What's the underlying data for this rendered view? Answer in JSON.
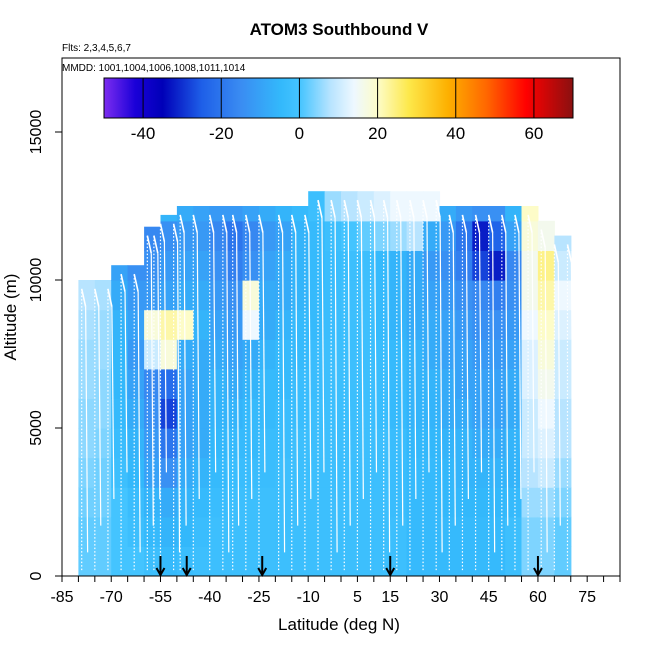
{
  "chart_data": {
    "type": "heatmap",
    "title": "ATOM3 Southbound V",
    "subtitle_flights": "Flts: 2,3,4,5,6,7",
    "subtitle_dates": "MMDD: 1001,1004,1006,1008,1011,1014",
    "xlabel": "Latitude (deg N)",
    "ylabel": "Altitude (m)",
    "xlim": [
      -85,
      85
    ],
    "ylim": [
      0,
      17500
    ],
    "x_tick_labels": [
      "-85",
      "-70",
      "-55",
      "-40",
      "-25",
      "-10",
      "5",
      "15",
      "30",
      "45",
      "60",
      "75"
    ],
    "x_tick_values": [
      -85,
      -70,
      -55,
      -40,
      -25,
      -10,
      5,
      15,
      30,
      45,
      60,
      75
    ],
    "y_tick_labels": [
      "0",
      "5000",
      "10000",
      "15000"
    ],
    "y_tick_values": [
      0,
      5000,
      10000,
      15000
    ],
    "colorbar": {
      "range": [
        -50,
        70
      ],
      "tick_labels": [
        "-40",
        "-20",
        "0",
        "20",
        "40",
        "60"
      ],
      "tick_values": [
        -40,
        -20,
        0,
        20,
        40,
        60
      ],
      "stops": [
        {
          "v": -50,
          "c": "#7d2df0"
        },
        {
          "v": -42,
          "c": "#1a00d8"
        },
        {
          "v": -35,
          "c": "#0000b8"
        },
        {
          "v": -25,
          "c": "#1e5fe8"
        },
        {
          "v": -15,
          "c": "#3a8cf2"
        },
        {
          "v": -5,
          "c": "#33b8fb"
        },
        {
          "v": 0,
          "c": "#44c4ff"
        },
        {
          "v": 8,
          "c": "#b8e4ff"
        },
        {
          "v": 14,
          "c": "#eef8ff"
        },
        {
          "v": 20,
          "c": "#fdfcc8"
        },
        {
          "v": 28,
          "c": "#fde84a"
        },
        {
          "v": 38,
          "c": "#fdb000"
        },
        {
          "v": 48,
          "c": "#ff6600"
        },
        {
          "v": 58,
          "c": "#ff0000"
        },
        {
          "v": 70,
          "c": "#8a1010"
        }
      ]
    },
    "sounding_markers_lat": [
      -55,
      -47,
      -24,
      15,
      60
    ],
    "field": {
      "lat_ranges": [
        -80,
        -75,
        -70,
        -65,
        -60,
        -55,
        -50,
        -45,
        -40,
        -35,
        -30,
        -25,
        -20,
        -15,
        -10,
        -5,
        0,
        5,
        10,
        15,
        20,
        25,
        30,
        35,
        40,
        45,
        50,
        55,
        60,
        65,
        70
      ],
      "top_altitude": [
        10000,
        10000,
        10500,
        10500,
        11800,
        12200,
        12500,
        12500,
        12500,
        12500,
        12500,
        12500,
        12500,
        12500,
        13000,
        13000,
        13000,
        13000,
        13000,
        13000,
        13000,
        13000,
        12500,
        12500,
        12500,
        12500,
        12500,
        12500,
        12000,
        11500
      ],
      "bottom_altitude": [
        0,
        0,
        0,
        0,
        0,
        0,
        0,
        0,
        0,
        0,
        0,
        0,
        0,
        0,
        0,
        0,
        0,
        0,
        0,
        0,
        0,
        0,
        0,
        0,
        0,
        0,
        0,
        0,
        0,
        0
      ],
      "alt_levels": [
        0,
        1000,
        2000,
        3000,
        4000,
        5000,
        6000,
        7000,
        8000,
        9000,
        10000,
        11000,
        12000
      ],
      "values_by_column": [
        [
          2,
          2,
          3,
          4,
          5,
          5,
          6,
          6,
          7,
          8
        ],
        [
          2,
          2,
          3,
          3,
          4,
          5,
          5,
          6,
          6,
          7
        ],
        [
          0,
          0,
          0,
          -2,
          -3,
          -4,
          -5,
          -5,
          -6,
          -8,
          -10
        ],
        [
          0,
          -2,
          -3,
          -5,
          -6,
          -8,
          -10,
          -12,
          -10,
          -12,
          -14
        ],
        [
          -2,
          -4,
          -6,
          -10,
          -12,
          -14,
          -16,
          10,
          18,
          -12,
          -14,
          -16
        ],
        [
          -4,
          -6,
          -8,
          -14,
          -20,
          -28,
          -22,
          18,
          22,
          -10,
          -12,
          -14,
          -6
        ],
        [
          -3,
          -5,
          -6,
          -8,
          -10,
          -10,
          -10,
          -8,
          20,
          -8,
          -10,
          -12,
          -8
        ],
        [
          -2,
          -3,
          -4,
          -6,
          -8,
          -8,
          -8,
          -8,
          -6,
          -8,
          -10,
          -12,
          -10
        ],
        [
          -2,
          -2,
          -3,
          -4,
          -5,
          -6,
          -6,
          -8,
          -10,
          -12,
          -14,
          -16,
          -12
        ],
        [
          -2,
          -2,
          -2,
          -3,
          -4,
          -6,
          -8,
          -10,
          -12,
          -14,
          -18,
          -20,
          -12
        ],
        [
          -2,
          -2,
          -2,
          -3,
          -4,
          -4,
          -6,
          -8,
          14,
          18,
          -14,
          -16,
          -10
        ],
        [
          -2,
          -2,
          -2,
          -3,
          -3,
          -4,
          -4,
          -6,
          -8,
          -8,
          -10,
          -12,
          -8
        ],
        [
          -2,
          -2,
          -2,
          -2,
          -3,
          -3,
          -4,
          -4,
          -6,
          -8,
          -8,
          -10,
          -6
        ],
        [
          -2,
          -2,
          -2,
          -2,
          -2,
          -3,
          -3,
          -4,
          -4,
          -6,
          -6,
          -6,
          -4
        ],
        [
          -2,
          -2,
          -2,
          -2,
          -2,
          -2,
          -3,
          -3,
          -4,
          -4,
          -4,
          -4,
          -2
        ],
        [
          -2,
          -2,
          -2,
          -2,
          -2,
          -2,
          -2,
          -2,
          -3,
          -3,
          -3,
          -2,
          6
        ],
        [
          -2,
          -2,
          -2,
          -2,
          -2,
          -2,
          -2,
          -2,
          -2,
          -2,
          -2,
          0,
          8
        ],
        [
          -2,
          -2,
          -2,
          -2,
          -2,
          -2,
          -2,
          -2,
          -2,
          -2,
          -2,
          2,
          10
        ],
        [
          -2,
          -2,
          -2,
          -2,
          -2,
          -3,
          -3,
          -3,
          -4,
          -4,
          -4,
          4,
          12
        ],
        [
          -2,
          -2,
          -3,
          -3,
          -3,
          -4,
          -4,
          -4,
          -6,
          -6,
          -6,
          6,
          14
        ],
        [
          -4,
          -4,
          -4,
          -4,
          -5,
          -6,
          -6,
          -6,
          -8,
          -8,
          -8,
          8,
          14
        ],
        [
          -4,
          -4,
          -4,
          -4,
          -5,
          -6,
          -6,
          -8,
          -8,
          -10,
          -12,
          -8,
          14
        ],
        [
          -4,
          -4,
          -5,
          -5,
          -6,
          -8,
          -8,
          -10,
          -10,
          -12,
          -14,
          -12,
          -8
        ],
        [
          -4,
          -4,
          -5,
          -6,
          -6,
          -8,
          -10,
          -10,
          -12,
          -14,
          -18,
          -20,
          -12
        ],
        [
          -4,
          -4,
          -5,
          -6,
          -8,
          -10,
          -10,
          -12,
          -14,
          -16,
          -28,
          -32,
          -14
        ],
        [
          -4,
          -4,
          -5,
          -6,
          -8,
          -10,
          -10,
          -12,
          -14,
          -18,
          -32,
          -24,
          -14
        ],
        [
          -2,
          -2,
          -4,
          -6,
          -6,
          -8,
          -8,
          -10,
          -12,
          -14,
          -16,
          -10,
          -6
        ],
        [
          4,
          4,
          6,
          8,
          10,
          10,
          12,
          12,
          14,
          16,
          16,
          18,
          20
        ],
        [
          4,
          4,
          6,
          10,
          12,
          14,
          16,
          18,
          20,
          22,
          24,
          16,
          10
        ],
        [
          2,
          2,
          4,
          6,
          8,
          8,
          10,
          10,
          12,
          14,
          10,
          8
        ]
      ]
    },
    "profiles_lat": [
      -79,
      -75,
      -71,
      -67,
      -63,
      -59,
      -57,
      -55,
      -51,
      -49,
      -45,
      -40,
      -36,
      -33,
      -29,
      -25,
      -19,
      -15,
      -11,
      -7,
      -3,
      1,
      5,
      9,
      13,
      17,
      21,
      25,
      29,
      33,
      37,
      41,
      45,
      49,
      53,
      57,
      61,
      65,
      69
    ]
  },
  "colors": {
    "axis": "#000000",
    "profile_line": "#ffffff",
    "background": "#ffffff"
  },
  "icons": {
    "marker": "down-arrow-icon"
  }
}
